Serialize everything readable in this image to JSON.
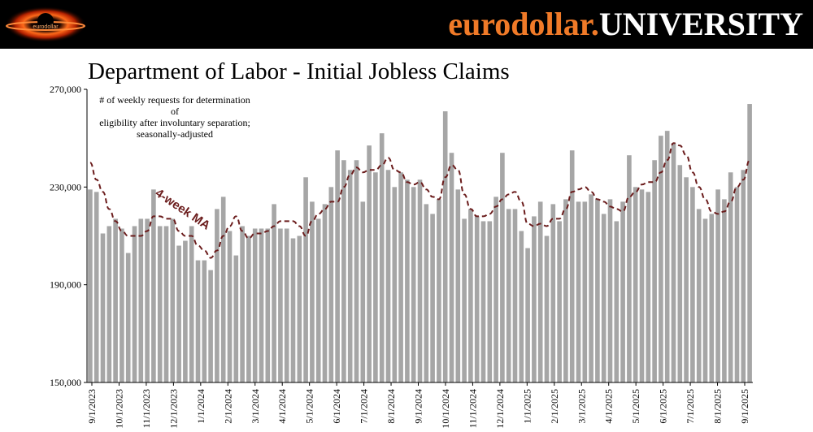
{
  "brand": {
    "part1": "eurodollar.",
    "part2": "UNIVERSITY",
    "accent_color": "#f07a28"
  },
  "logo": {
    "icon": "black-hole-logo-icon",
    "text": "eurodollar"
  },
  "title": "Department of Labor - Initial Jobless Claims",
  "description": [
    "# of weekly requests for determination of",
    "eligibility after involuntary separation;",
    "seasonally-adjusted"
  ],
  "annotation": "4-week MA",
  "chart_data": {
    "type": "bar",
    "title": "Department of Labor - Initial Jobless Claims",
    "xlabel": "",
    "ylabel": "",
    "ylim": [
      150000,
      270000
    ],
    "yticks": [
      150000,
      190000,
      230000,
      270000
    ],
    "ytick_labels": [
      "150,000",
      "190,000",
      "230,000",
      "270,000"
    ],
    "xtick_labels": [
      "9/1/2023",
      "10/1/2023",
      "11/1/2023",
      "12/1/2023",
      "1/1/2024",
      "2/1/2024",
      "3/1/2024",
      "4/1/2024",
      "5/1/2024",
      "6/1/2024",
      "7/1/2024",
      "8/1/2024",
      "9/1/2024",
      "10/1/2024",
      "11/1/2024",
      "12/1/2024",
      "1/1/2025",
      "2/1/2025",
      "3/1/2025",
      "4/1/2025",
      "5/1/2025",
      "6/1/2025",
      "7/1/2025",
      "8/1/2025",
      "9/1/2025"
    ],
    "grid": false,
    "series": [
      {
        "kind": "bar",
        "color": "#a6a6a6",
        "values": [
          229000,
          228000,
          211000,
          214000,
          217000,
          213000,
          203000,
          214000,
          217000,
          217000,
          229000,
          214000,
          214000,
          217000,
          206000,
          208000,
          214000,
          200000,
          200000,
          196000,
          221000,
          226000,
          212000,
          202000,
          214000,
          210000,
          213000,
          213000,
          213000,
          223000,
          213000,
          213000,
          209000,
          210000,
          234000,
          224000,
          217000,
          223000,
          230000,
          245000,
          241000,
          237000,
          241000,
          224000,
          247000,
          236000,
          252000,
          237000,
          230000,
          236000,
          233000,
          230000,
          233000,
          223000,
          219000,
          225000,
          261000,
          244000,
          229000,
          217000,
          221000,
          218000,
          216000,
          216000,
          226000,
          244000,
          221000,
          221000,
          212000,
          205000,
          218000,
          224000,
          210000,
          223000,
          216000,
          225000,
          245000,
          224000,
          224000,
          227000,
          225000,
          219000,
          225000,
          216000,
          224000,
          243000,
          230000,
          229000,
          228000,
          241000,
          251000,
          253000,
          248000,
          239000,
          234000,
          230000,
          221000,
          217000,
          219000,
          229000,
          225000,
          236000,
          230000,
          237000,
          264000
        ]
      },
      {
        "kind": "line",
        "name": "4-week MA",
        "color": "#6b1c1c",
        "dashed": true,
        "values": [
          240000,
          233000,
          228000,
          221000,
          216000,
          212000,
          210000,
          210000,
          210000,
          212000,
          218000,
          218000,
          217000,
          217000,
          212000,
          210000,
          210000,
          206000,
          204000,
          201000,
          204000,
          210000,
          214000,
          218000,
          212000,
          209000,
          211000,
          211000,
          212000,
          214000,
          216000,
          216000,
          216000,
          214000,
          210000,
          216000,
          219000,
          221000,
          224000,
          224000,
          230000,
          235000,
          238000,
          236000,
          237000,
          237000,
          239000,
          242000,
          237000,
          236000,
          232000,
          231000,
          232000,
          229000,
          226000,
          225000,
          234000,
          239000,
          237000,
          227000,
          221000,
          218000,
          218000,
          219000,
          222000,
          225000,
          227000,
          228000,
          224000,
          215000,
          214000,
          215000,
          214000,
          217000,
          217000,
          221000,
          228000,
          229000,
          230000,
          228000,
          225000,
          224000,
          222000,
          221000,
          220000,
          226000,
          228000,
          231000,
          232000,
          232000,
          236000,
          241000,
          248000,
          247000,
          243000,
          236000,
          230000,
          225000,
          220000,
          219000,
          220000,
          224000,
          230000,
          233000,
          241000
        ]
      }
    ]
  }
}
